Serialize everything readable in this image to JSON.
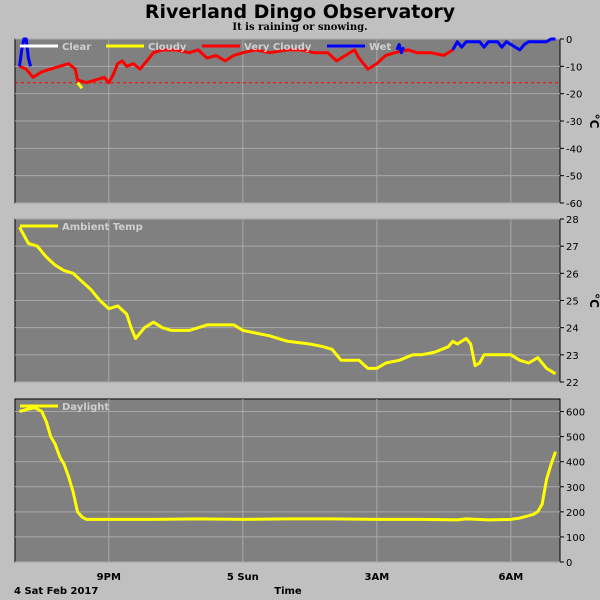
{
  "title": "Riverland Dingo Observatory",
  "subtitle": "It is raining or snowing.",
  "colors": {
    "plot_bg": "#808080",
    "page_bg": "#c0c0c0",
    "grid": "#a8a8a8",
    "clear": "#ffffff",
    "cloudy": "#ffff00",
    "very_cloudy": "#ff0000",
    "wet": "#0000ff",
    "threshold": "#ff0000"
  },
  "x_axis": {
    "label": "Time",
    "start_label": "4 Sat Feb 2017",
    "ticks": [
      {
        "hour": 21,
        "label": "9PM"
      },
      {
        "hour": 24,
        "label": "5 Sun"
      },
      {
        "hour": 27,
        "label": "3AM"
      },
      {
        "hour": 30,
        "label": "6AM"
      }
    ],
    "range_hours": [
      18.9,
      31.1
    ]
  },
  "chart_data": [
    {
      "type": "line",
      "panel": "sky",
      "legend": [
        "Clear",
        "Cloudy",
        "Very Cloudy",
        "Wet"
      ],
      "ylabel": "°C",
      "ylim": [
        -60,
        0
      ],
      "yticks": [
        0,
        -10,
        -20,
        -30,
        -40,
        -50,
        -60
      ],
      "threshold": -16,
      "series": [
        {
          "name": "Very Cloudy",
          "color_key": "very_cloudy",
          "points": [
            [
              19.0,
              -10
            ],
            [
              19.15,
              -11
            ],
            [
              19.3,
              -14
            ],
            [
              19.5,
              -12
            ],
            [
              19.7,
              -11
            ],
            [
              19.9,
              -10
            ],
            [
              20.1,
              -9
            ],
            [
              20.25,
              -11
            ],
            [
              20.3,
              -15
            ],
            [
              20.5,
              -16
            ],
            [
              20.7,
              -15
            ],
            [
              20.9,
              -14
            ],
            [
              21.0,
              -16
            ],
            [
              21.1,
              -13
            ],
            [
              21.2,
              -9
            ],
            [
              21.3,
              -8
            ],
            [
              21.4,
              -10
            ],
            [
              21.55,
              -9
            ],
            [
              21.7,
              -11
            ],
            [
              21.85,
              -8
            ],
            [
              22.0,
              -5
            ],
            [
              22.2,
              -4
            ],
            [
              22.5,
              -4
            ],
            [
              22.8,
              -5
            ],
            [
              23.0,
              -4
            ],
            [
              23.2,
              -7
            ],
            [
              23.4,
              -6
            ],
            [
              23.6,
              -8
            ],
            [
              23.8,
              -6
            ],
            [
              24.0,
              -5
            ],
            [
              24.3,
              -4
            ],
            [
              24.6,
              -5
            ],
            [
              25.0,
              -4
            ],
            [
              25.3,
              -4
            ],
            [
              25.6,
              -5
            ],
            [
              25.9,
              -5
            ],
            [
              26.1,
              -8
            ],
            [
              26.3,
              -6
            ],
            [
              26.5,
              -4
            ],
            [
              26.6,
              -7
            ],
            [
              26.8,
              -11
            ],
            [
              27.0,
              -9
            ],
            [
              27.2,
              -6
            ],
            [
              27.4,
              -5
            ],
            [
              27.7,
              -4
            ],
            [
              27.9,
              -5
            ],
            [
              28.2,
              -5
            ],
            [
              28.5,
              -6
            ],
            [
              28.7,
              -4
            ]
          ]
        },
        {
          "name": "Cloudy",
          "color_key": "cloudy",
          "points": [
            [
              20.3,
              -16
            ],
            [
              20.4,
              -18
            ]
          ]
        },
        {
          "name": "Wet",
          "color_key": "wet",
          "points": [
            [
              19.0,
              -10
            ],
            [
              19.05,
              -4
            ],
            [
              19.1,
              0
            ],
            [
              19.15,
              0
            ],
            [
              19.2,
              -7
            ],
            [
              19.25,
              -10
            ]
          ]
        },
        {
          "name": "Wet",
          "color_key": "wet",
          "points": [
            [
              27.45,
              -4
            ],
            [
              27.5,
              -2
            ],
            [
              27.55,
              -5
            ],
            [
              27.6,
              -3
            ]
          ]
        },
        {
          "name": "Wet",
          "color_key": "wet",
          "points": [
            [
              28.7,
              -4
            ],
            [
              28.8,
              -1
            ],
            [
              28.9,
              -3
            ],
            [
              29.0,
              -1
            ],
            [
              29.3,
              -1
            ],
            [
              29.4,
              -3
            ],
            [
              29.5,
              -1
            ],
            [
              29.7,
              -1
            ],
            [
              29.8,
              -3
            ],
            [
              29.9,
              -1
            ],
            [
              30.1,
              -3
            ],
            [
              30.2,
              -4
            ],
            [
              30.3,
              -2
            ],
            [
              30.4,
              -1
            ],
            [
              30.8,
              -1
            ],
            [
              30.9,
              0
            ],
            [
              31.0,
              0
            ]
          ]
        }
      ]
    },
    {
      "type": "line",
      "panel": "ambient",
      "legend": [
        "Ambient Temp"
      ],
      "ylabel": "°C",
      "ylim": [
        22,
        28
      ],
      "yticks": [
        28,
        27,
        26,
        25,
        24,
        23,
        22
      ],
      "series": [
        {
          "name": "Ambient Temp",
          "color_key": "cloudy",
          "points": [
            [
              19.0,
              27.7
            ],
            [
              19.2,
              27.1
            ],
            [
              19.4,
              27.0
            ],
            [
              19.6,
              26.6
            ],
            [
              19.8,
              26.3
            ],
            [
              20.0,
              26.1
            ],
            [
              20.2,
              26.0
            ],
            [
              20.4,
              25.7
            ],
            [
              20.6,
              25.4
            ],
            [
              20.8,
              25.0
            ],
            [
              21.0,
              24.7
            ],
            [
              21.2,
              24.8
            ],
            [
              21.4,
              24.5
            ],
            [
              21.5,
              24.0
            ],
            [
              21.6,
              23.6
            ],
            [
              21.8,
              24.0
            ],
            [
              22.0,
              24.2
            ],
            [
              22.2,
              24.0
            ],
            [
              22.4,
              23.9
            ],
            [
              22.6,
              23.9
            ],
            [
              22.8,
              23.9
            ],
            [
              23.0,
              24.0
            ],
            [
              23.2,
              24.1
            ],
            [
              23.4,
              24.1
            ],
            [
              23.6,
              24.1
            ],
            [
              23.8,
              24.1
            ],
            [
              24.0,
              23.9
            ],
            [
              24.3,
              23.8
            ],
            [
              24.6,
              23.7
            ],
            [
              25.0,
              23.5
            ],
            [
              25.5,
              23.4
            ],
            [
              25.8,
              23.3
            ],
            [
              26.0,
              23.2
            ],
            [
              26.2,
              22.8
            ],
            [
              26.6,
              22.8
            ],
            [
              26.8,
              22.5
            ],
            [
              27.0,
              22.5
            ],
            [
              27.2,
              22.7
            ],
            [
              27.5,
              22.8
            ],
            [
              27.8,
              23.0
            ],
            [
              28.0,
              23.0
            ],
            [
              28.3,
              23.1
            ],
            [
              28.6,
              23.3
            ],
            [
              28.7,
              23.5
            ],
            [
              28.8,
              23.4
            ],
            [
              29.0,
              23.6
            ],
            [
              29.1,
              23.4
            ],
            [
              29.2,
              22.6
            ],
            [
              29.3,
              22.7
            ],
            [
              29.4,
              23.0
            ],
            [
              29.6,
              23.0
            ],
            [
              30.0,
              23.0
            ],
            [
              30.2,
              22.8
            ],
            [
              30.4,
              22.7
            ],
            [
              30.6,
              22.9
            ],
            [
              30.8,
              22.5
            ],
            [
              31.0,
              22.3
            ]
          ]
        }
      ]
    },
    {
      "type": "line",
      "panel": "daylight",
      "legend": [
        "Daylight"
      ],
      "ylabel": "",
      "ylim": [
        0,
        650
      ],
      "yticks": [
        600,
        500,
        400,
        300,
        200,
        100,
        0
      ],
      "series": [
        {
          "name": "Daylight",
          "color_key": "cloudy",
          "points": [
            [
              19.0,
              600
            ],
            [
              19.2,
              610
            ],
            [
              19.35,
              615
            ],
            [
              19.5,
              600
            ],
            [
              19.6,
              560
            ],
            [
              19.7,
              500
            ],
            [
              19.8,
              470
            ],
            [
              19.9,
              420
            ],
            [
              20.0,
              390
            ],
            [
              20.1,
              340
            ],
            [
              20.2,
              280
            ],
            [
              20.3,
              200
            ],
            [
              20.4,
              180
            ],
            [
              20.5,
              170
            ],
            [
              21.0,
              170
            ],
            [
              22.0,
              170
            ],
            [
              23.0,
              172
            ],
            [
              24.0,
              170
            ],
            [
              25.0,
              172
            ],
            [
              26.0,
              172
            ],
            [
              27.0,
              170
            ],
            [
              28.0,
              170
            ],
            [
              28.8,
              168
            ],
            [
              29.0,
              172
            ],
            [
              29.5,
              168
            ],
            [
              30.0,
              170
            ],
            [
              30.2,
              175
            ],
            [
              30.5,
              190
            ],
            [
              30.6,
              200
            ],
            [
              30.7,
              230
            ],
            [
              30.8,
              330
            ],
            [
              30.9,
              390
            ],
            [
              31.0,
              440
            ]
          ]
        }
      ]
    }
  ]
}
